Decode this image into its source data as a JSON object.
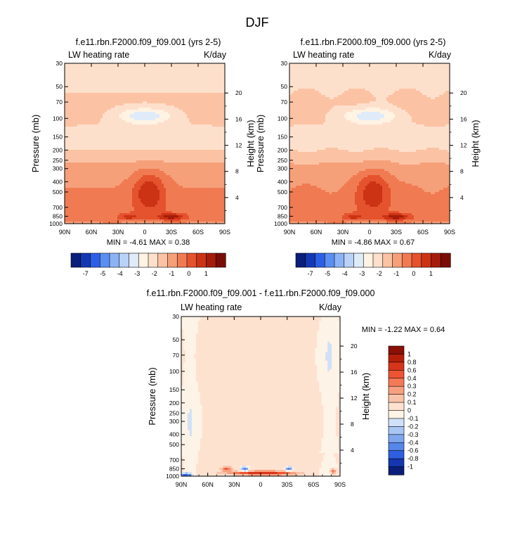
{
  "page": {
    "title": "DJF"
  },
  "chart_data": [
    {
      "type": "heatmap",
      "title": "f.e11.rbn.F2000.f09_f09.001 (yrs 2-5)",
      "left_string": "LW heating rate",
      "right_string": "K/day",
      "xlabel": "",
      "ylabel": "Pressure (mb)",
      "ylabel_right": "Height (km)",
      "x_ticks": [
        "90N",
        "60N",
        "30N",
        "0",
        "30S",
        "60S",
        "90S"
      ],
      "y_ticks": [
        30,
        50,
        70,
        100,
        150,
        200,
        250,
        300,
        400,
        500,
        700,
        850,
        1000
      ],
      "y_ticks_right": [
        20,
        16,
        12,
        8,
        4
      ],
      "min_label": "MIN = -4.61  MAX = 0.38",
      "colorbar_labels": [
        "-7",
        "-5",
        "-4",
        "-3",
        "-2",
        "-1",
        "0",
        "1"
      ],
      "colors": [
        "#0a1e7a",
        "#1437b4",
        "#2d5ee6",
        "#5a8ef0",
        "#8db3f5",
        "#b9d2f8",
        "#e0ebfa",
        "#fff3e3",
        "#fde0cc",
        "#fbc3a4",
        "#f6a07a",
        "#f07b52",
        "#e5522e",
        "#cc3315",
        "#a51c0a",
        "#7a0d05"
      ],
      "field_id": "base"
    },
    {
      "type": "heatmap",
      "title": "f.e11.rbn.F2000.f09_f09.000 (yrs 2-5)",
      "left_string": "LW heating rate",
      "right_string": "K/day",
      "xlabel": "",
      "ylabel": "Pressure (mb)",
      "ylabel_right": "Height (km)",
      "x_ticks": [
        "90N",
        "60N",
        "30N",
        "0",
        "30S",
        "60S",
        "90S"
      ],
      "y_ticks": [
        30,
        50,
        70,
        100,
        150,
        200,
        250,
        300,
        400,
        500,
        700,
        850,
        1000
      ],
      "y_ticks_right": [
        20,
        16,
        12,
        8,
        4
      ],
      "min_label": "MIN = -4.86  MAX = 0.67",
      "colorbar_labels": [
        "-7",
        "-5",
        "-4",
        "-3",
        "-2",
        "-1",
        "0",
        "1"
      ],
      "colors": [
        "#0a1e7a",
        "#1437b4",
        "#2d5ee6",
        "#5a8ef0",
        "#8db3f5",
        "#b9d2f8",
        "#e0ebfa",
        "#fff3e3",
        "#fde0cc",
        "#fbc3a4",
        "#f6a07a",
        "#f07b52",
        "#e5522e",
        "#cc3315",
        "#a51c0a",
        "#7a0d05"
      ],
      "field_id": "base2"
    },
    {
      "type": "heatmap",
      "title": "f.e11.rbn.F2000.f09_f09.001 - f.e11.rbn.F2000.f09_f09.000",
      "left_string": "LW heating rate",
      "right_string": "K/day",
      "xlabel": "",
      "ylabel": "Pressure (mb)",
      "ylabel_right": "Height (km)",
      "x_ticks": [
        "90N",
        "60N",
        "30N",
        "0",
        "30S",
        "60S",
        "90S"
      ],
      "y_ticks": [
        30,
        50,
        70,
        100,
        150,
        200,
        250,
        300,
        400,
        500,
        700,
        850,
        1000
      ],
      "y_ticks_right": [
        20,
        16,
        12,
        8,
        4
      ],
      "min_label": "MIN = -1.22  MAX =  0.64",
      "colorbar_labels": [
        "1",
        "0.8",
        "0.6",
        "0.4",
        "0.3",
        "0.2",
        "0.1",
        "0",
        "-0.1",
        "-0.2",
        "-0.3",
        "-0.4",
        "-0.6",
        "-0.8",
        "-1"
      ],
      "colors": [
        "#8a0f05",
        "#b51f0a",
        "#d8341a",
        "#ee5433",
        "#f47a55",
        "#f7a07f",
        "#f9c3a8",
        "#fde2d0",
        "#fdf3e6",
        "#cfe0f8",
        "#a8c6f3",
        "#7ea7ee",
        "#5586ea",
        "#2f5fe0",
        "#1536b0",
        "#0a1e7a"
      ],
      "field_id": "diff"
    }
  ]
}
